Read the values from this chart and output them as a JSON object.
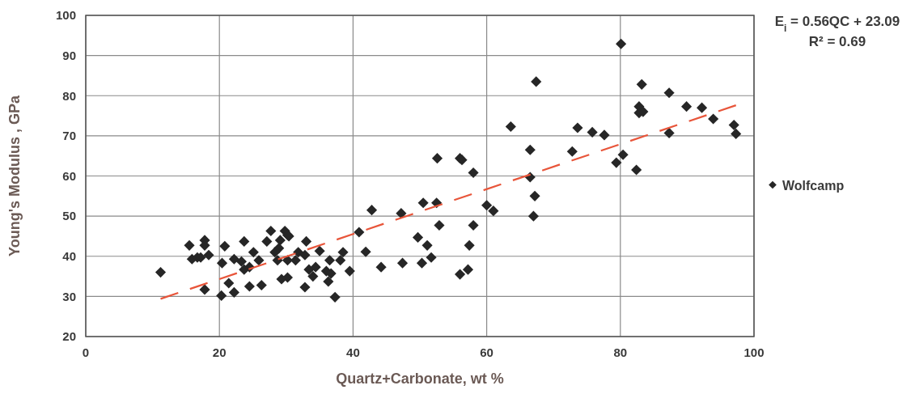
{
  "chart_data": {
    "type": "scatter",
    "xlabel": "Quartz+Carbonate, wt %",
    "ylabel": "Young's Modulus , GPa",
    "annotations": [
      "E$_{i}$ = 0.56QC + 23.09",
      "R² = 0.69"
    ],
    "xlim": [
      0,
      100
    ],
    "ylim": [
      20,
      100
    ],
    "xticks": [
      0,
      20,
      40,
      60,
      80,
      100
    ],
    "yticks": [
      20,
      30,
      40,
      50,
      60,
      70,
      80,
      90,
      100
    ],
    "grid": true,
    "legend": "right",
    "series": [
      {
        "name": "Wolfcamp",
        "marker": "diamond",
        "color": "#262626",
        "x": [
          11.2,
          15.5,
          17.8,
          17.8,
          15.9,
          16.7,
          18.4,
          17.2,
          17.8,
          20.8,
          20.4,
          20.3,
          21.4,
          22.2,
          23.7,
          22.2,
          23.3,
          23.7,
          25.1,
          24.5,
          25.9,
          24.5,
          26.3,
          27.1,
          27.7,
          28.3,
          29.1,
          29.8,
          30.2,
          28.9,
          28.7,
          29.3,
          30.2,
          30.2,
          30.4,
          31.4,
          31.8,
          32.8,
          33,
          35,
          33.4,
          34.4,
          34,
          36.5,
          38.1,
          38.5,
          36,
          36.7,
          36.3,
          32.8,
          37.3,
          39.5,
          40.9,
          41.9,
          42.8,
          44.2,
          47.2,
          47.4,
          49.7,
          51.1,
          50.3,
          51.7,
          50.5,
          52.5,
          52.9,
          56,
          57.2,
          57.4,
          58,
          60,
          61,
          52.6,
          56,
          56.3,
          58,
          80.1,
          67.4,
          83.2,
          87.3,
          82.8,
          82.8,
          83.4,
          89.9,
          92.2,
          93.9,
          97,
          97.3,
          87.3,
          63.6,
          73.6,
          75.8,
          77.6,
          66.5,
          72.8,
          80.4,
          79.4,
          82.4,
          66.5,
          67.2,
          67
        ],
        "values": [
          36,
          42.7,
          44,
          42.7,
          39.3,
          39.7,
          40.3,
          39.7,
          31.7,
          42.5,
          38.3,
          30.2,
          33.3,
          31,
          43.7,
          39.3,
          38.7,
          36.7,
          41,
          37.3,
          39,
          32.5,
          32.8,
          43.7,
          46.3,
          41,
          44,
          46.3,
          45.3,
          42,
          39,
          34.3,
          34.7,
          39,
          45,
          39,
          41,
          40.3,
          43.7,
          41.3,
          36.7,
          37.3,
          35,
          39,
          39,
          41,
          36.3,
          35.7,
          33.7,
          32.3,
          29.8,
          36.3,
          46,
          41.1,
          51.5,
          37.3,
          50.7,
          38.3,
          44.7,
          42.7,
          38.3,
          39.7,
          53.3,
          53.3,
          47.7,
          35.5,
          36.7,
          42.7,
          47.7,
          52.7,
          51.3,
          64.4,
          64.4,
          64,
          60.8,
          92.9,
          83.5,
          82.8,
          80.7,
          77.3,
          75.7,
          76,
          77.3,
          77,
          74.2,
          72.7,
          70.5,
          70.7,
          72.3,
          72,
          70.9,
          70.2,
          66.5,
          66.1,
          65.3,
          63.3,
          61.5,
          59.7,
          55,
          50
        ]
      },
      {
        "type": "line",
        "color": "#e8553a",
        "line_style": "dashed",
        "x": [
          11.2,
          97.3
        ],
        "values": [
          29.4,
          77.6
        ]
      }
    ]
  }
}
